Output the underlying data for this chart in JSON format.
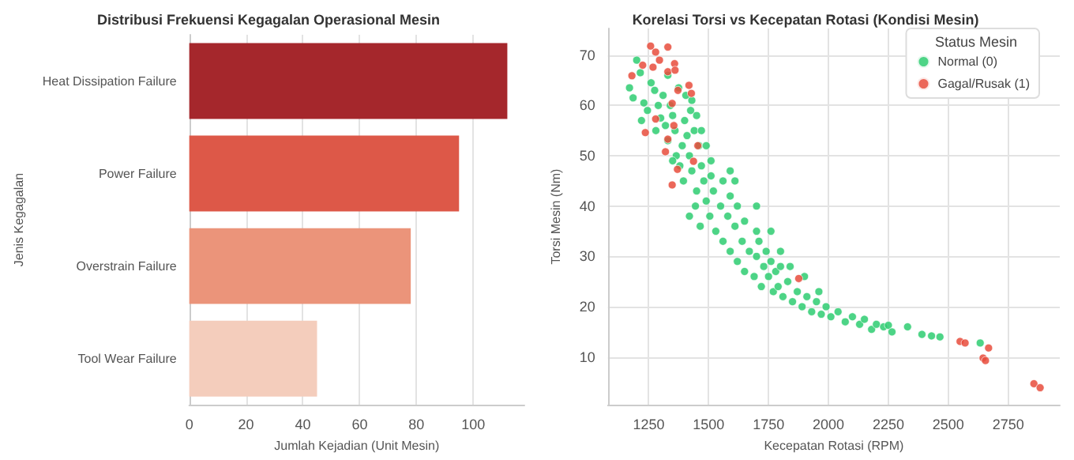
{
  "chart_data": [
    {
      "type": "bar",
      "orientation": "horizontal",
      "title": "Distribusi Frekuensi Kegagalan Operasional Mesin",
      "xlabel": "Jumlah Kejadian (Unit Mesin)",
      "ylabel": "Jenis Kegagalan",
      "categories": [
        "Heat Dissipation Failure",
        "Power Failure",
        "Overstrain Failure",
        "Tool Wear Failure"
      ],
      "values": [
        112,
        95,
        78,
        45
      ],
      "colors": [
        "#a5272c",
        "#dd5848",
        "#eb947a",
        "#f4cdbc"
      ],
      "xlim": [
        0,
        118
      ],
      "xticks": [
        0,
        20,
        40,
        60,
        80,
        100
      ],
      "grid": "x"
    },
    {
      "type": "scatter",
      "title": "Korelasi Torsi vs Kecepatan Rotasi (Kondisi Mesin)",
      "xlabel": "Kecepatan Rotasi (RPM)",
      "ylabel": "Torsi Mesin (Nm)",
      "legend_title": "Status Mesin",
      "xlim": [
        1080,
        2965
      ],
      "xticks": [
        1250,
        1500,
        1750,
        2000,
        2250,
        2500,
        2750
      ],
      "ylim": [
        0.5,
        75.3
      ],
      "yticks": [
        10,
        20,
        30,
        40,
        50,
        60,
        70
      ],
      "grid": true,
      "legend": "top right",
      "marker": "circle",
      "series": [
        {
          "name": "Normal (0)",
          "color": "#2ecc71",
          "x": [
            1170,
            1185,
            1200,
            1215,
            1230,
            1245,
            1260,
            1275,
            1290,
            1300,
            1310,
            1320,
            1330,
            1340,
            1350,
            1360,
            1365,
            1375,
            1380,
            1390,
            1395,
            1400,
            1405,
            1410,
            1420,
            1425,
            1430,
            1440,
            1445,
            1450,
            1460,
            1465,
            1470,
            1480,
            1490,
            1490,
            1505,
            1510,
            1520,
            1530,
            1510,
            1550,
            1560,
            1560,
            1580,
            1590,
            1590,
            1610,
            1620,
            1620,
            1640,
            1650,
            1650,
            1670,
            1700,
            1690,
            1700,
            1710,
            1720,
            1730,
            1740,
            1750,
            1760,
            1770,
            1780,
            1790,
            1800,
            1810,
            1830,
            1850,
            1870,
            1890,
            1910,
            1930,
            1950,
            1970,
            1990,
            2010,
            2040,
            2070,
            2100,
            2130,
            2150,
            2180,
            2200,
            2230,
            2250,
            2265,
            2330,
            2390,
            2430,
            2465,
            2633,
            1220,
            1280,
            1330,
            1350,
            1420,
            1590,
            1610,
            1700,
            1450,
            1430,
            1470,
            1760,
            1800,
            1840,
            1900,
            1960
          ],
          "values": [
            63.5,
            61.5,
            69,
            66.5,
            60.5,
            59,
            64.5,
            63,
            60,
            57.5,
            62,
            56,
            53,
            60,
            58,
            55,
            50,
            63.5,
            48,
            52,
            45,
            57,
            62,
            54,
            50,
            59,
            47,
            55,
            40,
            43,
            52,
            36,
            48,
            45,
            41,
            52,
            38,
            46,
            43,
            35,
            49,
            40,
            33,
            45,
            38,
            31,
            42,
            36,
            29,
            40,
            33,
            27,
            37,
            31,
            35,
            26,
            30,
            33,
            24,
            28,
            31,
            26,
            29,
            23,
            27,
            24,
            28,
            22,
            25,
            21,
            23,
            20,
            22,
            19,
            21,
            18.5,
            20,
            18,
            19,
            17,
            18,
            16.5,
            17.5,
            15.5,
            16.5,
            16,
            16.3,
            15,
            16,
            14.5,
            14.2,
            14,
            12.8,
            57,
            55,
            66,
            49,
            38,
            47,
            45,
            40,
            58,
            61,
            55,
            35,
            31,
            28,
            26,
            23
          ]
        },
        {
          "name": "Gagal/Rusak (1)",
          "color": "#e74c3c",
          "x": [
            1180,
            1225,
            1258,
            1268,
            1279,
            1295,
            1330,
            1330,
            1358,
            1360,
            1418,
            1428,
            1372,
            1236,
            1279,
            1330,
            1320,
            1348,
            1370,
            1437,
            1455,
            1355,
            1348,
            1876,
            2549,
            2570,
            2668,
            2645,
            2655,
            2857,
            2883
          ],
          "values": [
            65.9,
            68,
            71.8,
            67.6,
            70.6,
            69,
            71.6,
            66.7,
            68.3,
            67,
            64,
            62.4,
            63,
            54.6,
            57.3,
            53.3,
            50.8,
            44.2,
            47.3,
            48.9,
            52,
            56,
            60.4,
            25.6,
            13.1,
            12.8,
            11.8,
            9.8,
            9.3,
            4.7,
            3.9
          ]
        }
      ]
    }
  ]
}
